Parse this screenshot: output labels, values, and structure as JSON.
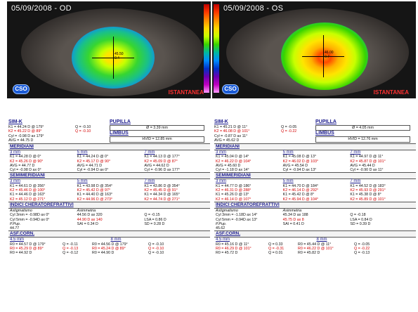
{
  "maps": [
    {
      "title": "05/09/2008 - OD",
      "center_label_1": "45.50",
      "center_label_2": "0.4",
      "logo": "CSO",
      "snapshot": "ISTANTANEA"
    },
    {
      "title": "05/09/2008 - OS",
      "center_label_1": "46.00",
      "center_label_2": "0.7",
      "logo": "CSO",
      "snapshot": "ISTANTANEA"
    }
  ],
  "panels": [
    {
      "simk_title": "SIM-K",
      "simk": [
        "K1 = 44.24 D @ 179°",
        "K2 = 45.22 D @ 89°",
        "Cyl = -0.98 D ax 179°",
        "AVG = 44.75 D"
      ],
      "simk_q": [
        "Q = -0.10",
        "Q = -0.10"
      ],
      "pupil_title": "PUPILLA",
      "pupil_value": "Ø = 3.39 mm",
      "limbus_title": "LIMBUS",
      "limbus_value": "HVID = 12.85 mm",
      "meridians_title": "MERIDIANI",
      "meridians": [
        {
          "zone": "3 mm",
          "k1": "K1 = 44.28 D @ 0°",
          "k2": "K2 = 45.26 D @ 90°",
          "avg": "AVG = 44.77 D",
          "cyl": "Cyl = -0.98 D ax 0°"
        },
        {
          "zone": "5 mm",
          "k1": "K1 = 44.24 D @ 0°",
          "k2": "K2 = 45.17 D @ 90°",
          "avg": "AVG = 44.71 D",
          "cyl": "Cyl = -0.94 D ax 0°"
        },
        {
          "zone": "7 mm",
          "k1": "K1 = 44.13 D @ 177°",
          "k2": "K2 = 45.09 D @ 87°",
          "avg": "AVG = 44.62 D",
          "cyl": "Cyl = -0.96 D ax 177°"
        }
      ],
      "semi_title": "SEMIMERIDIANI",
      "semi": [
        {
          "zone": "3 mm",
          "lines": [
            "K1 = 44.61 D @ 356°",
            "K2 = 45.46 D @ 100°",
            "K1 = 44.46 D @ 163°",
            "K2 = 45.12 D @ 271°"
          ]
        },
        {
          "zone": "5 mm",
          "lines": [
            "K1 = 43.98 D @ 354°",
            "K2 = 45.42 D @ 97°",
            "K1 = 44.40 D @ 163°",
            "K2 = 44.96 D @ 273°"
          ]
        },
        {
          "zone": "7 mm",
          "lines": [
            "K1 = 43.86 D @ 354°",
            "K2 = 45.45 D @ 91°",
            "K1 = 44.34 D @ 165°",
            "K2 = 44.74 D @ 271°"
          ]
        }
      ],
      "refr_title": "INDICI CHERATOREFRATTIVI",
      "astig_label": "Astigmatismo",
      "astig": [
        "Cyl 3mm = -0.98D ax 0°",
        "Cyl 5mm = -0.94D ax 0°"
      ],
      "ppup_label": "P.Pup.",
      "ppup_value": "44.77",
      "asym_label": "Asimmetria",
      "asym": [
        "44.56 D ax 320",
        "44.90 D ax 140",
        "SAI = 0.34 D"
      ],
      "qlsa": [
        "Q = -0.15",
        "LSA = 0.86 D",
        "SD = 0.28 D"
      ],
      "asf_title": "ASF.CORN.",
      "asf_zones": [
        "4.5 mm",
        "8 mm"
      ],
      "asf_rows": [
        [
          "R0 = 44.57 D @ 179°",
          "Q = -0.11",
          "R0 = 44.56 D @ 179°",
          "Q = -0.10"
        ],
        [
          "R0 = 45.29 D @ 89°",
          "Q = -0.13",
          "R0 = 45.24 D @ 89°",
          "Q = -0.10"
        ],
        [
          "R0 = 44.92 D",
          "Q = -0.12",
          "R0 = 44.90 D",
          "Q = -0.10"
        ]
      ]
    },
    {
      "simk_title": "SIM-K",
      "simk": [
        "K1 = 45.21 D @ 11°",
        "K2 = 46.08 D @ 101°",
        "Cyl = -0.87 D ax 11°",
        "AVG = 45.62 D"
      ],
      "simk_q": [
        "Q = -0.05",
        "Q = -0.22"
      ],
      "pupil_title": "PUPILLA",
      "pupil_value": "Ø = 4.05 mm",
      "limbus_title": "LIMBUS",
      "limbus_value": "HVID = 12.76 mm",
      "meridians_title": "MERIDIANI",
      "meridians": [
        {
          "zone": "3 mm",
          "k1": "K1 = 45.04 D @ 14°",
          "k2": "K2 = 46.22 D @ 104°",
          "avg": "AVG = 45.60 D",
          "cyl": "Cyl = -1.18 D ax 14°"
        },
        {
          "zone": "5 mm",
          "k1": "K1 = 45.08 D @ 13°",
          "k2": "K2 = 46.02 D @ 103°",
          "avg": "AVG = 45.54 D",
          "cyl": "Cyl = -0.94 D ax 13°"
        },
        {
          "zone": "7 mm",
          "k1": "K1 = 44.97 D @ 11°",
          "k2": "K2 = 45.87 D @ 101°",
          "avg": "AVG = 45.44 D",
          "cyl": "Cyl = -0.90 D ax 11°"
        }
      ],
      "semi_title": "SEMIMERIDIANI",
      "semi": [
        {
          "zone": "3 mm",
          "lines": [
            "K1 = 44.77 D @ 186°",
            "K2 = 46.31 D @ 288°",
            "K1 = 45.26 D @ 13°",
            "K2 = 46.14 D @ 107°"
          ]
        },
        {
          "zone": "5 mm",
          "lines": [
            "K1 = 44.70 D @ 184°",
            "K2 = 46.14 D @ 292°",
            "K1 = 45.42 D @ 8°",
            "K2 = 45.94 D @ 104°"
          ]
        },
        {
          "zone": "7 mm",
          "lines": [
            "K1 = 44.52 D @ 183°",
            "K2 = 45.93 D @ 291°",
            "K1 = 45.38 D @ 8°",
            "K2 = 45.89 D @ 101°"
          ]
        }
      ],
      "refr_title": "INDICI CHERATOREFRATTIVI",
      "astig_label": "Astigmatismo",
      "astig": [
        "Cyl 3mm = -1.18D ax 14°",
        "Cyl 5mm = -0.94D ax 13°"
      ],
      "ppup_label": "P.Pup.",
      "ppup_value": "45.62",
      "asym_label": "Asimmetria",
      "asym": [
        "45.34 D ax 188",
        "45.75 D ax 8",
        "SAI = 0.41 D"
      ],
      "qlsa": [
        "Q = -0.18",
        "LSA = 0.84 D",
        "SD = 0.39 D"
      ],
      "asf_title": "ASF.CORN.",
      "asf_zones": [
        "4.5 mm",
        "8 mm"
      ],
      "asf_rows": [
        [
          "R0 = 45.16 D @ 11°",
          "Q = 0.33",
          "R0 = 45.44 D @ 11°",
          "Q = -0.05"
        ],
        [
          "R0 = 46.29 D @ 101°",
          "Q = -0.31",
          "R0 = 46.22 D @ 101°",
          "Q = -0.22"
        ],
        [
          "R0 = 45.72 D",
          "Q = 0.01",
          "R0 = 45.82 D",
          "Q = -0.13"
        ]
      ]
    }
  ]
}
